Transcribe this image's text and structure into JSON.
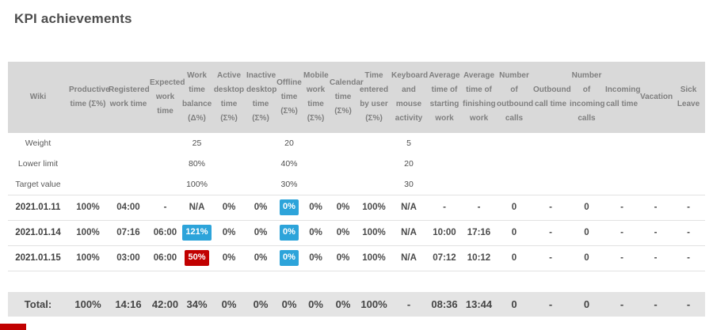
{
  "page": {
    "title": "KPI achievements"
  },
  "colors": {
    "header_bg": "#d9d9d9",
    "header_text": "#7f7f7f",
    "total_bg": "#e4e4e4",
    "badge_blue": "#2da4da",
    "badge_red": "#c10000"
  },
  "table": {
    "headers": [
      "Wiki",
      "Productive time (Σ%)",
      "Registered work time",
      "Expected work time",
      "Work time balance (Δ%)",
      "Active desktop time (Σ%)",
      "Inactive desktop time (Σ%)",
      "Offline time (Σ%)",
      "Mobile work time (Σ%)",
      "Calendar time (Σ%)",
      "Time entered by user (Σ%)",
      "Keyboard and mouse activity",
      "Average time of starting work",
      "Average time of finishing work",
      "Number of outbound calls",
      "Outbound call time",
      "Number of incoming calls",
      "Incoming call time",
      "Vacation",
      "Sick Leave"
    ],
    "meta_rows": [
      {
        "name": "weight",
        "cells": [
          "Weight",
          "",
          "",
          "",
          "25",
          "",
          "",
          "20",
          "",
          "",
          "",
          "5",
          "",
          "",
          "",
          "",
          "",
          "",
          "",
          ""
        ]
      },
      {
        "name": "lower-limit",
        "cells": [
          "Lower limit",
          "",
          "",
          "",
          "80%",
          "",
          "",
          "40%",
          "",
          "",
          "",
          "20",
          "",
          "",
          "",
          "",
          "",
          "",
          "",
          ""
        ]
      },
      {
        "name": "target-value",
        "cells": [
          "Target value",
          "",
          "",
          "",
          "100%",
          "",
          "",
          "30%",
          "",
          "",
          "",
          "30",
          "",
          "",
          "",
          "",
          "",
          "",
          "",
          ""
        ]
      }
    ],
    "rows": [
      {
        "date": "2021.01.11",
        "cells": [
          "2021.01.11",
          "100%",
          "04:00",
          "-",
          "N/A",
          "0%",
          "0%",
          {
            "text": "0%",
            "badge": "blue"
          },
          "0%",
          "0%",
          "100%",
          "N/A",
          "-",
          "-",
          "0",
          "-",
          "0",
          "-",
          "-",
          "-"
        ]
      },
      {
        "date": "2021.01.14",
        "cells": [
          "2021.01.14",
          "100%",
          "07:16",
          "06:00",
          {
            "text": "121%",
            "badge": "blue"
          },
          "0%",
          "0%",
          {
            "text": "0%",
            "badge": "blue"
          },
          "0%",
          "0%",
          "100%",
          "N/A",
          "10:00",
          "17:16",
          "0",
          "-",
          "0",
          "-",
          "-",
          "-"
        ]
      },
      {
        "date": "2021.01.15",
        "cells": [
          "2021.01.15",
          "100%",
          "03:00",
          "06:00",
          {
            "text": "50%",
            "badge": "red"
          },
          "0%",
          "0%",
          {
            "text": "0%",
            "badge": "blue"
          },
          "0%",
          "0%",
          "100%",
          "N/A",
          "07:12",
          "10:12",
          "0",
          "-",
          "0",
          "-",
          "-",
          "-"
        ]
      }
    ],
    "total": [
      "Total:",
      "100%",
      "14:16",
      "42:00",
      "34%",
      "0%",
      "0%",
      "0%",
      "0%",
      "0%",
      "100%",
      "-",
      "08:36",
      "13:44",
      "0",
      "-",
      "0",
      "-",
      "-",
      "-"
    ]
  }
}
